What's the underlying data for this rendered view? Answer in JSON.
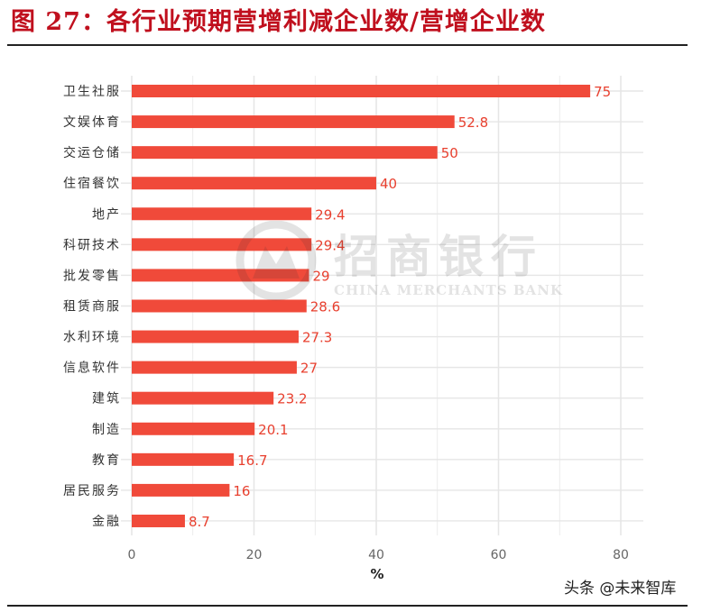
{
  "figure_title": "图 27：各行业预期营增利减企业数/营增企业数",
  "watermark": {
    "cn": "招商银行",
    "en": "CHINA MERCHANTS BANK",
    "logo_icon": "cmb-logo-icon"
  },
  "credit": "头条 @未来智库",
  "colors": {
    "bar": "#f04a3a",
    "label": "#e8402f",
    "title": "#c0101e",
    "grid": "#e6e6e6"
  },
  "chart_data": {
    "type": "bar",
    "orientation": "horizontal",
    "categories": [
      "卫生社服",
      "文娱体育",
      "交运仓储",
      "住宿餐饮",
      "地产",
      "科研技术",
      "批发零售",
      "租赁商服",
      "水利环境",
      "信息软件",
      "建筑",
      "制造",
      "教育",
      "居民服务",
      "金融"
    ],
    "values": [
      75,
      52.8,
      50,
      40,
      29.4,
      29.4,
      29,
      28.6,
      27.3,
      27,
      23.2,
      20.1,
      16.7,
      16,
      8.7
    ],
    "value_labels": [
      "75",
      "52.8",
      "50",
      "40",
      "29.4",
      "29.4",
      "29",
      "28.6",
      "27.3",
      "27",
      "23.2",
      "20.1",
      "16.7",
      "16",
      "8.7"
    ],
    "xlabel": "%",
    "ylabel": "",
    "xlim": [
      0,
      80
    ],
    "xticks": [
      0,
      20,
      40,
      60,
      80
    ],
    "grid": true,
    "legend": "none"
  }
}
